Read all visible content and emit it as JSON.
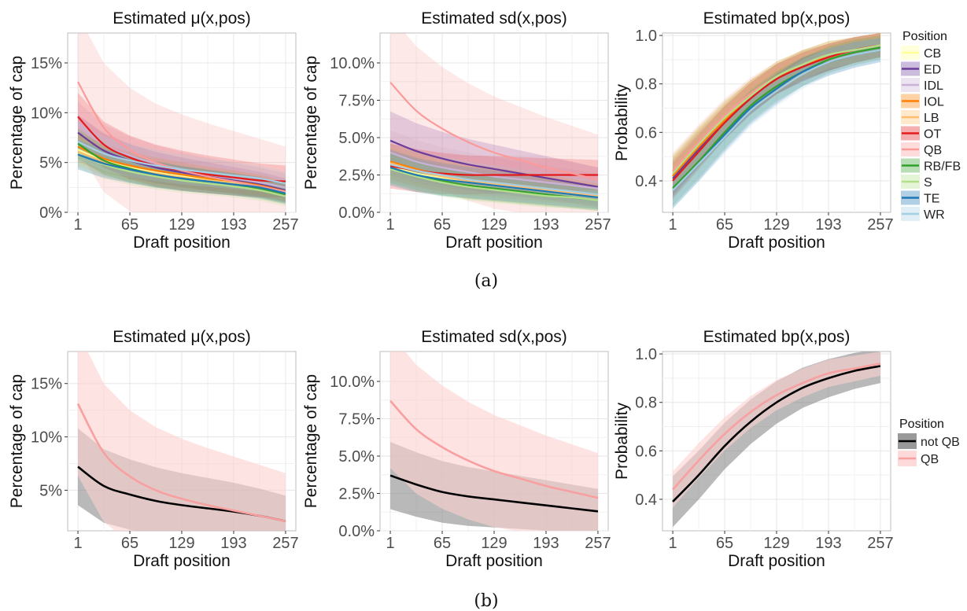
{
  "legends": {
    "a": {
      "title": "Position",
      "entries": [
        {
          "label": "CB",
          "color": "#ffff99"
        },
        {
          "label": "ED",
          "color": "#6a3d9a"
        },
        {
          "label": "IDL",
          "color": "#cab2d6"
        },
        {
          "label": "IOL",
          "color": "#ff7f00"
        },
        {
          "label": "LB",
          "color": "#fdbf6f"
        },
        {
          "label": "OT",
          "color": "#e31a1c"
        },
        {
          "label": "QB",
          "color": "#fb9a99"
        },
        {
          "label": "RB/FB",
          "color": "#33a02c"
        },
        {
          "label": "S",
          "color": "#b2df8a"
        },
        {
          "label": "TE",
          "color": "#1f78b4"
        },
        {
          "label": "WR",
          "color": "#a6cee3"
        }
      ]
    },
    "b": {
      "title": "Position",
      "entries": [
        {
          "label": "not QB",
          "color": "#000000"
        },
        {
          "label": "QB",
          "color": "#f8a0a0"
        }
      ]
    }
  },
  "captions": {
    "a": "(a)",
    "b": "(b)"
  },
  "chart_data": [
    {
      "type": "line",
      "panel": "a-mu",
      "title": "Estimated μ(x,pos)",
      "xlabel": "Draft position",
      "ylabel": "Percentage of cap",
      "xlim": [
        1,
        257
      ],
      "ylim": [
        0,
        0.18
      ],
      "grid": true,
      "x_ticks": [
        1,
        65,
        129,
        193,
        257
      ],
      "y_ticks": [
        {
          "v": 0,
          "label": "0%"
        },
        {
          "v": 0.05,
          "label": "5%"
        },
        {
          "v": 0.1,
          "label": "10%"
        },
        {
          "v": 0.15,
          "label": "15%"
        }
      ],
      "x": [
        1,
        33,
        65,
        97,
        129,
        161,
        193,
        225,
        257
      ],
      "series": [
        {
          "name": "CB",
          "values": [
            0.063,
            0.052,
            0.045,
            0.04,
            0.036,
            0.033,
            0.03,
            0.027,
            0.02
          ],
          "band": 0.01
        },
        {
          "name": "ED",
          "values": [
            0.08,
            0.062,
            0.052,
            0.045,
            0.04,
            0.036,
            0.032,
            0.028,
            0.022
          ],
          "band": 0.012
        },
        {
          "name": "IDL",
          "values": [
            0.09,
            0.068,
            0.057,
            0.049,
            0.043,
            0.038,
            0.034,
            0.03,
            0.025
          ],
          "band": 0.014
        },
        {
          "name": "IOL",
          "values": [
            0.066,
            0.054,
            0.047,
            0.042,
            0.038,
            0.034,
            0.031,
            0.027,
            0.021
          ],
          "band": 0.01
        },
        {
          "name": "LB",
          "values": [
            0.061,
            0.051,
            0.044,
            0.039,
            0.035,
            0.032,
            0.029,
            0.026,
            0.02
          ],
          "band": 0.01
        },
        {
          "name": "OT",
          "values": [
            0.096,
            0.068,
            0.055,
            0.047,
            0.042,
            0.038,
            0.035,
            0.032,
            0.031
          ],
          "band": 0.016
        },
        {
          "name": "QB",
          "values": [
            0.131,
            0.085,
            0.063,
            0.05,
            0.042,
            0.036,
            0.031,
            0.026,
            0.021
          ],
          "band": 0.045
        },
        {
          "name": "RB/FB",
          "values": [
            0.069,
            0.052,
            0.044,
            0.038,
            0.034,
            0.031,
            0.028,
            0.024,
            0.018
          ],
          "band": 0.01
        },
        {
          "name": "S",
          "values": [
            0.059,
            0.048,
            0.041,
            0.036,
            0.032,
            0.029,
            0.026,
            0.022,
            0.016
          ],
          "band": 0.01
        },
        {
          "name": "TE",
          "values": [
            0.058,
            0.049,
            0.043,
            0.038,
            0.034,
            0.031,
            0.028,
            0.025,
            0.019
          ],
          "band": 0.01
        },
        {
          "name": "WR",
          "values": [
            0.071,
            0.059,
            0.052,
            0.047,
            0.043,
            0.04,
            0.037,
            0.034,
            0.029
          ],
          "band": 0.012
        }
      ]
    },
    {
      "type": "line",
      "panel": "a-sd",
      "title": "Estimated sd(x,pos)",
      "xlabel": "Draft position",
      "ylabel": "Percentage of cap",
      "xlim": [
        1,
        257
      ],
      "ylim": [
        0,
        0.12
      ],
      "grid": true,
      "x_ticks": [
        1,
        65,
        129,
        193,
        257
      ],
      "y_ticks": [
        {
          "v": 0,
          "label": "0.0%"
        },
        {
          "v": 0.025,
          "label": "2.5%"
        },
        {
          "v": 0.05,
          "label": "5.0%"
        },
        {
          "v": 0.075,
          "label": "7.5%"
        },
        {
          "v": 0.1,
          "label": "10.0%"
        }
      ],
      "x": [
        1,
        33,
        65,
        97,
        129,
        161,
        193,
        225,
        257
      ],
      "series": [
        {
          "name": "CB",
          "values": [
            0.031,
            0.026,
            0.023,
            0.02,
            0.018,
            0.016,
            0.014,
            0.012,
            0.01
          ],
          "band": 0.008
        },
        {
          "name": "ED",
          "values": [
            0.048,
            0.041,
            0.036,
            0.032,
            0.029,
            0.026,
            0.023,
            0.02,
            0.017
          ],
          "band": 0.013
        },
        {
          "name": "IDL",
          "values": [
            0.04,
            0.034,
            0.03,
            0.027,
            0.024,
            0.022,
            0.02,
            0.018,
            0.016
          ],
          "band": 0.01
        },
        {
          "name": "IOL",
          "values": [
            0.034,
            0.029,
            0.025,
            0.022,
            0.02,
            0.018,
            0.016,
            0.014,
            0.011
          ],
          "band": 0.008
        },
        {
          "name": "LB",
          "values": [
            0.033,
            0.028,
            0.024,
            0.021,
            0.019,
            0.017,
            0.015,
            0.013,
            0.011
          ],
          "band": 0.008
        },
        {
          "name": "OT",
          "values": [
            0.031,
            0.028,
            0.026,
            0.025,
            0.025,
            0.025,
            0.025,
            0.025,
            0.025
          ],
          "band": 0.01
        },
        {
          "name": "QB",
          "values": [
            0.087,
            0.068,
            0.056,
            0.047,
            0.04,
            0.035,
            0.03,
            0.026,
            0.022
          ],
          "band": 0.03
        },
        {
          "name": "RB/FB",
          "values": [
            0.03,
            0.025,
            0.021,
            0.018,
            0.016,
            0.014,
            0.012,
            0.01,
            0.008
          ],
          "band": 0.007
        },
        {
          "name": "S",
          "values": [
            0.029,
            0.024,
            0.02,
            0.017,
            0.015,
            0.013,
            0.011,
            0.01,
            0.008
          ],
          "band": 0.007
        },
        {
          "name": "TE",
          "values": [
            0.03,
            0.025,
            0.022,
            0.02,
            0.018,
            0.016,
            0.014,
            0.012,
            0.01
          ],
          "band": 0.008
        },
        {
          "name": "WR",
          "values": [
            0.032,
            0.028,
            0.025,
            0.022,
            0.02,
            0.018,
            0.016,
            0.014,
            0.012
          ],
          "band": 0.009
        }
      ]
    },
    {
      "type": "line",
      "panel": "a-bp",
      "title": "Estimated bp(x,pos)",
      "xlabel": "Draft position",
      "ylabel": "Probability",
      "xlim": [
        1,
        257
      ],
      "ylim": [
        0.27,
        1.01
      ],
      "grid": true,
      "x_ticks": [
        1,
        65,
        129,
        193,
        257
      ],
      "y_ticks": [
        {
          "v": 0.4,
          "label": "0.4"
        },
        {
          "v": 0.6,
          "label": "0.6"
        },
        {
          "v": 0.8,
          "label": "0.8"
        },
        {
          "v": 1.0,
          "label": "1.0"
        }
      ],
      "x": [
        1,
        33,
        65,
        97,
        129,
        161,
        193,
        225,
        257
      ],
      "series": [
        {
          "name": "CB",
          "values": [
            0.43,
            0.55,
            0.66,
            0.75,
            0.83,
            0.88,
            0.92,
            0.94,
            0.96
          ],
          "band": 0.05
        },
        {
          "name": "ED",
          "values": [
            0.41,
            0.53,
            0.64,
            0.74,
            0.82,
            0.87,
            0.91,
            0.94,
            0.96
          ],
          "band": 0.05
        },
        {
          "name": "IDL",
          "values": [
            0.42,
            0.54,
            0.65,
            0.75,
            0.82,
            0.88,
            0.91,
            0.94,
            0.96
          ],
          "band": 0.05
        },
        {
          "name": "IOL",
          "values": [
            0.42,
            0.54,
            0.65,
            0.75,
            0.82,
            0.88,
            0.91,
            0.94,
            0.96
          ],
          "band": 0.05
        },
        {
          "name": "LB",
          "values": [
            0.43,
            0.55,
            0.66,
            0.75,
            0.83,
            0.88,
            0.92,
            0.94,
            0.96
          ],
          "band": 0.05
        },
        {
          "name": "OT",
          "values": [
            0.4,
            0.52,
            0.64,
            0.74,
            0.82,
            0.87,
            0.91,
            0.94,
            0.96
          ],
          "band": 0.05
        },
        {
          "name": "QB",
          "values": [
            0.44,
            0.56,
            0.67,
            0.76,
            0.83,
            0.88,
            0.92,
            0.94,
            0.96
          ],
          "band": 0.05
        },
        {
          "name": "RB/FB",
          "values": [
            0.37,
            0.48,
            0.6,
            0.71,
            0.79,
            0.85,
            0.9,
            0.93,
            0.95
          ],
          "band": 0.05
        },
        {
          "name": "S",
          "values": [
            0.43,
            0.55,
            0.66,
            0.75,
            0.83,
            0.88,
            0.92,
            0.94,
            0.96
          ],
          "band": 0.05
        },
        {
          "name": "TE",
          "values": [
            0.36,
            0.47,
            0.59,
            0.7,
            0.78,
            0.85,
            0.89,
            0.92,
            0.94
          ],
          "band": 0.05
        },
        {
          "name": "WR",
          "values": [
            0.36,
            0.47,
            0.58,
            0.69,
            0.77,
            0.84,
            0.89,
            0.92,
            0.94
          ],
          "band": 0.05
        }
      ]
    },
    {
      "type": "line",
      "panel": "b-mu",
      "title": "Estimated μ(x,pos)",
      "xlabel": "Draft position",
      "ylabel": "Percentage of cap",
      "xlim": [
        1,
        257
      ],
      "ylim": [
        0.012,
        0.18
      ],
      "grid": true,
      "x_ticks": [
        1,
        65,
        129,
        193,
        257
      ],
      "y_ticks": [
        {
          "v": 0.05,
          "label": "5%"
        },
        {
          "v": 0.1,
          "label": "10%"
        },
        {
          "v": 0.15,
          "label": "15%"
        }
      ],
      "x": [
        1,
        33,
        65,
        97,
        129,
        161,
        193,
        225,
        257
      ],
      "series": [
        {
          "name": "not QB",
          "values": [
            0.072,
            0.054,
            0.046,
            0.04,
            0.036,
            0.033,
            0.03,
            0.026,
            0.021
          ],
          "band": 0.024
        },
        {
          "name": "QB",
          "values": [
            0.131,
            0.085,
            0.063,
            0.05,
            0.042,
            0.036,
            0.031,
            0.026,
            0.021
          ],
          "band": 0.045
        }
      ]
    },
    {
      "type": "line",
      "panel": "b-sd",
      "title": "Estimated sd(x,pos)",
      "xlabel": "Draft position",
      "ylabel": "Percentage of cap",
      "xlim": [
        1,
        257
      ],
      "ylim": [
        0,
        0.12
      ],
      "grid": true,
      "x_ticks": [
        1,
        65,
        129,
        193,
        257
      ],
      "y_ticks": [
        {
          "v": 0,
          "label": "0.0%"
        },
        {
          "v": 0.025,
          "label": "2.5%"
        },
        {
          "v": 0.05,
          "label": "5.0%"
        },
        {
          "v": 0.075,
          "label": "7.5%"
        },
        {
          "v": 0.1,
          "label": "10.0%"
        }
      ],
      "x": [
        1,
        33,
        65,
        97,
        129,
        161,
        193,
        225,
        257
      ],
      "series": [
        {
          "name": "not QB",
          "values": [
            0.037,
            0.031,
            0.026,
            0.023,
            0.021,
            0.019,
            0.017,
            0.015,
            0.013
          ],
          "band": 0.015
        },
        {
          "name": "QB",
          "values": [
            0.087,
            0.068,
            0.056,
            0.047,
            0.04,
            0.035,
            0.03,
            0.026,
            0.022
          ],
          "band": 0.03
        }
      ]
    },
    {
      "type": "line",
      "panel": "b-bp",
      "title": "Estimated bp(x,pos)",
      "xlabel": "Draft position",
      "ylabel": "Probability",
      "xlim": [
        1,
        257
      ],
      "ylim": [
        0.27,
        1.01
      ],
      "grid": true,
      "x_ticks": [
        1,
        65,
        129,
        193,
        257
      ],
      "y_ticks": [
        {
          "v": 0.4,
          "label": "0.4"
        },
        {
          "v": 0.6,
          "label": "0.6"
        },
        {
          "v": 0.8,
          "label": "0.8"
        },
        {
          "v": 1.0,
          "label": "1.0"
        }
      ],
      "x": [
        1,
        33,
        65,
        97,
        129,
        161,
        193,
        225,
        257
      ],
      "series": [
        {
          "name": "not QB",
          "values": [
            0.39,
            0.5,
            0.62,
            0.72,
            0.8,
            0.86,
            0.9,
            0.93,
            0.95
          ],
          "band": 0.07
        },
        {
          "name": "QB",
          "values": [
            0.44,
            0.56,
            0.67,
            0.76,
            0.83,
            0.88,
            0.92,
            0.94,
            0.96
          ],
          "band": 0.05
        }
      ]
    }
  ]
}
